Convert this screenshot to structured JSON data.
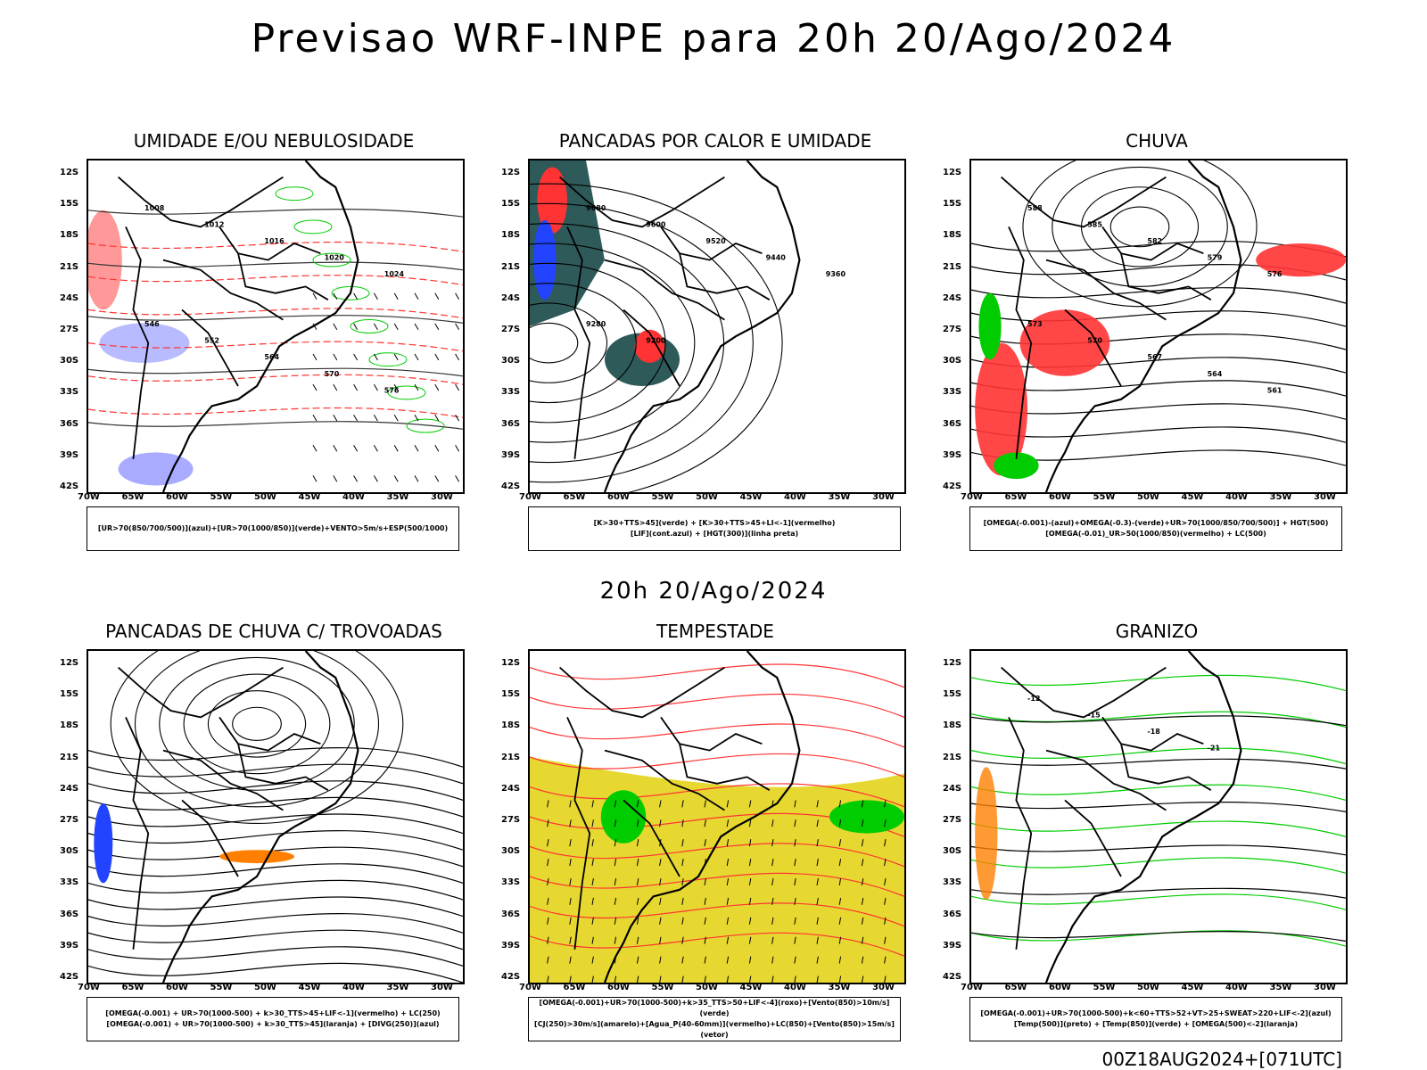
{
  "main_title": "Previsao WRF-INPE  para 20h 20/Ago/2024",
  "mid_title": "20h 20/Ago/2024",
  "footer": "00Z18AUG2024+[071UTC]",
  "lat_labels": [
    "12S",
    "15S",
    "18S",
    "21S",
    "24S",
    "27S",
    "30S",
    "33S",
    "36S",
    "39S",
    "42S"
  ],
  "lon_labels": [
    "70W",
    "65W",
    "60W",
    "55W",
    "50W",
    "45W",
    "40W",
    "35W",
    "30W"
  ],
  "panels": [
    {
      "title": "UMIDADE E/OU NEBULOSIDADE",
      "legend": [
        "[UR>70(850/700/500)](azul)+[UR>70(1000/850)](verde)+VENTO>5m/s+ESP(500/1000)"
      ],
      "contour_labels": [
        "1008",
        "1012",
        "1016",
        "1020",
        "1024",
        "546",
        "552",
        "564",
        "570",
        "576"
      ]
    },
    {
      "title": "PANCADAS POR CALOR E UMIDADE",
      "legend": [
        "[K>30+TTS>45](verde) + [K>30+TTS>45+LI<-1](vermelho)",
        "[LIF](cont.azul) + [HGT(300)](linha preta)"
      ],
      "contour_labels": [
        "9680",
        "9600",
        "9520",
        "9440",
        "9360",
        "9280",
        "9200"
      ]
    },
    {
      "title": "CHUVA",
      "legend": [
        "[OMEGA(-0.001)-(azul)+OMEGA(-0.3)-(verde)+UR>70(1000/850/700/500)] + HGT(500)",
        "[OMEGA(-0.01)_UR>50(1000/850)(vermelho) + LC(500)"
      ],
      "contour_labels": [
        "588",
        "585",
        "582",
        "579",
        "576",
        "573",
        "570",
        "567",
        "564",
        "561"
      ]
    },
    {
      "title": "PANCADAS DE CHUVA C/ TROVOADAS",
      "legend": [
        "[OMEGA(-0.001) + UR>70(1000-500) + k>30_TTS>45+LIF<-1](vermelho) + LC(250)",
        "[OMEGA(-0.001) + UR>70(1000-500) + k>30_TTS>45](laranja) + [DIVG(250)](azul)"
      ],
      "contour_labels": []
    },
    {
      "title": "TEMPESTADE",
      "legend": [
        "[OMEGA(-0.001)+UR>70(1000-500)+k>35_TTS>50+LIF<-4](roxo)+[Vento(850)>10m/s](verde)",
        "[CJ(250)>30m/s](amarelo)+[Agua_P(40-60mm)](vermelho)+LC(850)+[Vento(850)>15m/s](vetor)"
      ],
      "contour_labels": []
    },
    {
      "title": "GRANIZO",
      "legend": [
        "[OMEGA(-0.001)+UR>70(1000-500)+k<60+TTS>52+VT>25+SWEAT>220+LIF<-2](azul)",
        "[Temp(500)](preto) + [Temp(850)](verde) + [OMEGA(500)<-2](laranja)"
      ],
      "contour_labels": [
        "-12",
        "-15",
        "-18",
        "-21"
      ]
    }
  ],
  "colors": {
    "land_line": "#000000",
    "red": "#ff3333",
    "green": "#00cc00",
    "blue": "#2244ff",
    "yellow": "#e6d830",
    "teal": "#2f5a5a",
    "orange": "#ff8000"
  }
}
